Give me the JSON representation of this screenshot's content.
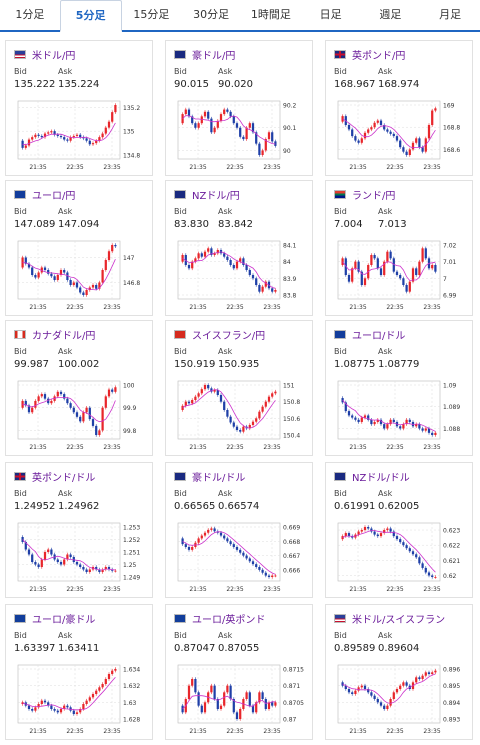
{
  "tabs": [
    "1分足",
    "5分足",
    "15分足",
    "30分足",
    "1時間足",
    "日足",
    "週足",
    "月足"
  ],
  "active_tab": 1,
  "labels": {
    "bid": "Bid",
    "ask": "Ask"
  },
  "colors": {
    "up": "#e8262b",
    "down": "#1f3fa7",
    "ma": "#cc33cc",
    "grid": "#dddddd",
    "pair": "#6a1b9a",
    "accent": "#1f66c2"
  },
  "cards": [
    {
      "pair": "米ドル/円",
      "flag": "us-flag-icon",
      "bid": "135.222",
      "ask": "135.224",
      "ticks": [
        "135.2",
        "135",
        "134.8"
      ],
      "x": [
        "21:35",
        "22:35",
        "23:35"
      ],
      "closes": [
        134.92,
        134.86,
        134.88,
        134.93,
        134.95,
        134.97,
        134.96,
        134.95,
        134.98,
        134.99,
        135.0,
        134.97,
        134.96,
        134.95,
        134.93,
        134.92,
        134.95,
        134.96,
        134.97,
        134.95,
        134.94,
        134.92,
        134.89,
        134.9,
        134.92,
        134.95,
        134.98,
        135.03,
        135.08,
        135.16,
        135.22
      ]
    },
    {
      "pair": "豪ドル/円",
      "flag": "au-flag-icon",
      "bid": "90.015",
      "ask": "90.020",
      "ticks": [
        "90.2",
        "90.1",
        "90"
      ],
      "x": [
        "21:35",
        "22:35",
        "23:35"
      ],
      "closes": [
        90.12,
        90.16,
        90.18,
        90.15,
        90.12,
        90.1,
        90.12,
        90.15,
        90.17,
        90.14,
        90.08,
        90.1,
        90.13,
        90.16,
        90.18,
        90.17,
        90.15,
        90.12,
        90.1,
        90.06,
        90.05,
        90.1,
        90.12,
        90.08,
        90.03,
        89.98,
        90.0,
        90.05,
        90.08,
        90.04,
        90.02
      ]
    },
    {
      "pair": "英ポンド/円",
      "flag": "uk-flag-icon",
      "bid": "168.967",
      "ask": "168.974",
      "ticks": [
        "169",
        "168.8",
        "168.6"
      ],
      "x": [
        "21:35",
        "22:35",
        "23:35"
      ],
      "closes": [
        168.85,
        168.9,
        168.82,
        168.78,
        168.72,
        168.68,
        168.66,
        168.7,
        168.75,
        168.78,
        168.8,
        168.84,
        168.86,
        168.82,
        168.78,
        168.76,
        168.74,
        168.72,
        168.68,
        168.62,
        168.58,
        168.55,
        168.6,
        168.66,
        168.7,
        168.62,
        168.58,
        168.7,
        168.82,
        168.95,
        168.97
      ]
    },
    {
      "pair": "ユーロ/円",
      "flag": "eu-flag-icon",
      "bid": "147.089",
      "ask": "147.094",
      "ticks": [
        "147",
        "146.8"
      ],
      "x": [
        "21:35",
        "22:35",
        "23:35"
      ],
      "closes": [
        146.92,
        147.0,
        146.95,
        146.92,
        146.86,
        146.84,
        146.88,
        146.92,
        146.9,
        146.87,
        146.85,
        146.82,
        146.86,
        146.9,
        146.88,
        146.82,
        146.78,
        146.8,
        146.76,
        146.72,
        146.7,
        146.74,
        146.76,
        146.78,
        146.75,
        146.8,
        146.9,
        146.98,
        147.05,
        147.1,
        147.09
      ]
    },
    {
      "pair": "NZドル/円",
      "flag": "nz-flag-icon",
      "bid": "83.830",
      "ask": "83.842",
      "ticks": [
        "84.1",
        "84",
        "83.9",
        "83.8"
      ],
      "x": [
        "21:35",
        "22:35",
        "23:35"
      ],
      "closes": [
        84.0,
        84.04,
        83.98,
        83.96,
        84.0,
        84.02,
        84.05,
        84.03,
        84.06,
        84.08,
        84.04,
        84.05,
        84.07,
        84.05,
        84.03,
        84.01,
        83.98,
        83.96,
        84.0,
        84.02,
        83.98,
        83.95,
        83.92,
        83.9,
        83.86,
        83.82,
        83.85,
        83.88,
        83.84,
        83.82,
        83.83
      ]
    },
    {
      "pair": "ランド/円",
      "flag": "za-flag-icon",
      "bid": "7.004",
      "ask": "7.013",
      "ticks": [
        "7.02",
        "7.01",
        "7",
        "6.99"
      ],
      "x": [
        "21:35",
        "22:35",
        "23:35"
      ],
      "closes": [
        7.008,
        7.012,
        7.002,
        6.998,
        7.006,
        7.01,
        7.004,
        6.996,
        7.0,
        7.008,
        7.014,
        7.012,
        7.006,
        7.002,
        7.01,
        7.016,
        7.012,
        7.004,
        7.002,
        7.0,
        6.996,
        6.992,
        6.998,
        7.006,
        7.002,
        7.01,
        7.018,
        7.012,
        7.006,
        7.008,
        7.004
      ]
    },
    {
      "pair": "カナダドル/円",
      "flag": "ca-flag-icon",
      "bid": "99.987",
      "ask": "100.002",
      "ticks": [
        "100",
        "99.9",
        "99.8"
      ],
      "x": [
        "21:35",
        "22:35",
        "23:35"
      ],
      "closes": [
        99.9,
        99.93,
        99.91,
        99.88,
        99.9,
        99.93,
        99.95,
        99.96,
        99.94,
        99.92,
        99.93,
        99.95,
        99.97,
        99.96,
        99.94,
        99.92,
        99.9,
        99.88,
        99.86,
        99.84,
        99.88,
        99.9,
        99.85,
        99.82,
        99.78,
        99.8,
        99.9,
        99.95,
        99.98,
        99.97,
        99.99
      ]
    },
    {
      "pair": "スイスフラン/円",
      "flag": "ch-flag-icon",
      "bid": "150.919",
      "ask": "150.935",
      "ticks": [
        "151",
        "150.8",
        "150.6",
        "150.4"
      ],
      "x": [
        "21:35",
        "22:35",
        "23:35"
      ],
      "closes": [
        150.7,
        150.75,
        150.8,
        150.78,
        150.82,
        150.86,
        150.9,
        150.95,
        151.0,
        150.96,
        150.92,
        150.94,
        150.88,
        150.8,
        150.7,
        150.62,
        150.55,
        150.5,
        150.46,
        150.44,
        150.5,
        150.48,
        150.52,
        150.56,
        150.6,
        150.68,
        150.74,
        150.8,
        150.86,
        150.9,
        150.92
      ]
    },
    {
      "pair": "ユーロ/ドル",
      "flag": "eu-us-flag-icon",
      "bid": "1.08775",
      "ask": "1.08779",
      "ticks": [
        "1.09",
        "1.089",
        "1.088"
      ],
      "x": [
        "21:35",
        "22:35",
        "23:35"
      ],
      "closes": [
        1.0894,
        1.0892,
        1.0888,
        1.0886,
        1.0885,
        1.0884,
        1.0883,
        1.0885,
        1.0886,
        1.0884,
        1.0882,
        1.0883,
        1.0884,
        1.0882,
        1.088,
        1.0882,
        1.0884,
        1.0883,
        1.0881,
        1.088,
        1.0882,
        1.0884,
        1.0883,
        1.0881,
        1.0882,
        1.088,
        1.0879,
        1.088,
        1.0878,
        1.0877,
        1.0878
      ]
    },
    {
      "pair": "英ポンド/ドル",
      "flag": "uk-us-flag-icon",
      "bid": "1.24952",
      "ask": "1.24962",
      "ticks": [
        "1.253",
        "1.252",
        "1.251",
        "1.25",
        "1.249"
      ],
      "x": [
        "21:35",
        "22:35",
        "23:35"
      ],
      "closes": [
        1.2522,
        1.2518,
        1.2512,
        1.2508,
        1.2502,
        1.25,
        1.2498,
        1.2504,
        1.251,
        1.2512,
        1.2508,
        1.2504,
        1.2502,
        1.25,
        1.2504,
        1.2508,
        1.2506,
        1.2502,
        1.25,
        1.2498,
        1.2496,
        1.2494,
        1.2496,
        1.2498,
        1.2496,
        1.2494,
        1.2496,
        1.2498,
        1.2496,
        1.2495,
        1.2495
      ]
    },
    {
      "pair": "豪ドル/ドル",
      "flag": "au-us-flag-icon",
      "bid": "0.66565",
      "ask": "0.66574",
      "ticks": [
        "0.669",
        "0.668",
        "0.667",
        "0.666"
      ],
      "x": [
        "21:35",
        "22:35",
        "23:35"
      ],
      "closes": [
        0.6682,
        0.6678,
        0.6676,
        0.6674,
        0.6676,
        0.6679,
        0.6682,
        0.6684,
        0.6686,
        0.6688,
        0.6689,
        0.6687,
        0.6686,
        0.6684,
        0.6682,
        0.668,
        0.6678,
        0.6676,
        0.6674,
        0.6672,
        0.667,
        0.6668,
        0.6666,
        0.6664,
        0.6662,
        0.666,
        0.6658,
        0.6656,
        0.6655,
        0.6656,
        0.6656
      ]
    },
    {
      "pair": "NZドル/ドル",
      "flag": "nz-us-flag-icon",
      "bid": "0.61991",
      "ask": "0.62005",
      "ticks": [
        "0.623",
        "0.622",
        "0.621",
        "0.62"
      ],
      "x": [
        "21:35",
        "22:35",
        "23:35"
      ],
      "closes": [
        0.6224,
        0.6226,
        0.6228,
        0.6226,
        0.6225,
        0.6227,
        0.6229,
        0.623,
        0.6232,
        0.6231,
        0.6229,
        0.6227,
        0.6226,
        0.6228,
        0.623,
        0.6231,
        0.6229,
        0.6226,
        0.6224,
        0.6222,
        0.622,
        0.6218,
        0.6216,
        0.6214,
        0.6212,
        0.6208,
        0.6205,
        0.6202,
        0.62,
        0.6199,
        0.6199
      ]
    },
    {
      "pair": "ユーロ/豪ドル",
      "flag": "eu-au-flag-icon",
      "bid": "1.63397",
      "ask": "1.63411",
      "ticks": [
        "1.634",
        "1.632",
        "1.63",
        "1.628"
      ],
      "x": [
        "21:35",
        "22:35",
        "23:35"
      ],
      "closes": [
        1.6298,
        1.63,
        1.6296,
        1.6292,
        1.629,
        1.6294,
        1.6298,
        1.6302,
        1.63,
        1.6296,
        1.6292,
        1.629,
        1.6288,
        1.6292,
        1.6296,
        1.6294,
        1.629,
        1.6286,
        1.6288,
        1.6292,
        1.6298,
        1.6302,
        1.6306,
        1.631,
        1.6314,
        1.6318,
        1.6322,
        1.6328,
        1.6334,
        1.6338,
        1.634
      ]
    },
    {
      "pair": "ユーロ/英ポンド",
      "flag": "eu-uk-flag-icon",
      "bid": "0.87047",
      "ask": "0.87055",
      "ticks": [
        "0.8715",
        "0.871",
        "0.8705",
        "0.87"
      ],
      "x": [
        "21:35",
        "22:35",
        "23:35"
      ],
      "closes": [
        0.8704,
        0.8702,
        0.8706,
        0.871,
        0.8712,
        0.8708,
        0.8704,
        0.8702,
        0.8705,
        0.8708,
        0.871,
        0.8706,
        0.8703,
        0.8704,
        0.8708,
        0.871,
        0.8706,
        0.8702,
        0.87,
        0.8703,
        0.8706,
        0.8708,
        0.8704,
        0.8702,
        0.8705,
        0.8708,
        0.8706,
        0.8703,
        0.8705,
        0.8704,
        0.8705
      ]
    },
    {
      "pair": "米ドル/スイスフラン",
      "flag": "us-ch-flag-icon",
      "bid": "0.89589",
      "ask": "0.89604",
      "ticks": [
        "0.896",
        "0.895",
        "0.894",
        "0.893"
      ],
      "x": [
        "21:35",
        "22:35",
        "23:35"
      ],
      "closes": [
        0.8952,
        0.895,
        0.8948,
        0.8946,
        0.8945,
        0.8947,
        0.8949,
        0.895,
        0.8948,
        0.8946,
        0.8944,
        0.8942,
        0.894,
        0.8938,
        0.8936,
        0.8938,
        0.8942,
        0.8946,
        0.8948,
        0.895,
        0.8952,
        0.895,
        0.8948,
        0.8952,
        0.8955,
        0.8954,
        0.8956,
        0.8958,
        0.8957,
        0.8958,
        0.8959
      ]
    }
  ]
}
